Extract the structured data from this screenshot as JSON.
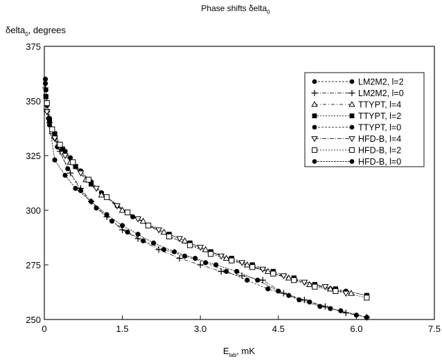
{
  "chart_data": {
    "type": "line",
    "title": "Phase shifts δelta",
    "title_sub": "0",
    "ylabel": "δelta",
    "ylabel_sub": "0",
    "ylabel_suffix": ", degrees",
    "xlabel": "E",
    "xlabel_sub": "lab",
    "xlabel_suffix": ", mK",
    "xlim": [
      0,
      7.5
    ],
    "ylim": [
      250,
      375
    ],
    "xticks": [
      "0",
      "1.5",
      "3.0",
      "4.5",
      "6.0",
      "7.5"
    ],
    "yticks": [
      "250",
      "275",
      "300",
      "325",
      "350",
      "375"
    ],
    "grid": false,
    "legend_position": "top-right",
    "series": [
      {
        "name": "LM2M2, l=2",
        "marker": "filled-circle",
        "x": [
          0.02,
          0.05,
          0.1,
          0.15,
          0.2,
          0.3,
          0.4,
          0.5,
          0.7,
          0.9,
          1.1,
          1.4,
          1.7,
          2.0,
          2.4,
          2.8,
          3.2,
          3.6,
          4.0,
          4.4,
          4.8,
          5.2,
          5.5,
          5.8,
          6.2
        ],
        "y": [
          358,
          348,
          342,
          337,
          333,
          330,
          327,
          324,
          318,
          313,
          308,
          302,
          297,
          293,
          288,
          284,
          281,
          277,
          274,
          271,
          268,
          266,
          264,
          263,
          261
        ]
      },
      {
        "name": "LM2M2, l=0",
        "marker": "plus",
        "x": [
          0.02,
          0.05,
          0.1,
          0.2,
          0.3,
          0.5,
          0.7,
          0.9,
          1.2,
          1.5,
          1.8,
          2.2,
          2.6,
          3.0,
          3.4,
          3.8,
          4.2,
          4.6,
          5.0,
          5.4,
          5.8,
          6.2
        ],
        "y": [
          356,
          346,
          340,
          333,
          327,
          317,
          310,
          304,
          297,
          291,
          287,
          282,
          278,
          275,
          272,
          270,
          268,
          262,
          259,
          256,
          253,
          251
        ]
      },
      {
        "name": "TTYPT, l=4",
        "marker": "open-triangle-up",
        "x": [
          0.05,
          0.15,
          0.3,
          0.5,
          0.8,
          1.1,
          1.5,
          1.9,
          2.3,
          2.7,
          3.1,
          3.5,
          3.9,
          4.3,
          4.7,
          5.1,
          5.5,
          5.9
        ],
        "y": [
          346,
          336,
          329,
          322,
          314,
          307,
          300,
          295,
          290,
          286,
          282,
          278,
          275,
          272,
          269,
          266,
          264,
          262
        ]
      },
      {
        "name": "TTYPT, l=2",
        "marker": "filled-square",
        "x": [
          0.03,
          0.1,
          0.2,
          0.35,
          0.6,
          0.9,
          1.2,
          1.6,
          2.0,
          2.4,
          2.8,
          3.2,
          3.6,
          4.0,
          4.4,
          4.8,
          5.2,
          5.6,
          6.2
        ],
        "y": [
          352,
          341,
          335,
          328,
          320,
          312,
          306,
          299,
          293,
          289,
          285,
          281,
          278,
          275,
          272,
          269,
          266,
          264,
          261
        ]
      },
      {
        "name": "TTYPT, l=0",
        "marker": "filled-circle",
        "x": [
          0.03,
          0.1,
          0.25,
          0.45,
          0.7,
          1.0,
          1.3,
          1.6,
          1.9,
          2.3,
          2.7,
          3.1,
          3.5,
          3.9,
          4.3,
          4.7,
          5.1,
          5.5,
          6.0
        ],
        "y": [
          355,
          339,
          329,
          319,
          309,
          301,
          295,
          290,
          286,
          282,
          279,
          276,
          272,
          268,
          264,
          261,
          258,
          255,
          252
        ]
      },
      {
        "name": "HFD-B, l=4",
        "marker": "open-triangle-down",
        "x": [
          0.05,
          0.2,
          0.4,
          0.7,
          1.0,
          1.4,
          1.8,
          2.2,
          2.6,
          3.0,
          3.4,
          3.8,
          4.2,
          4.6,
          5.0,
          5.4,
          5.8
        ],
        "y": [
          345,
          333,
          325,
          317,
          310,
          302,
          296,
          291,
          287,
          283,
          279,
          276,
          273,
          270,
          267,
          265,
          262
        ]
      },
      {
        "name": "HFD-B, l=2",
        "marker": "open-square",
        "x": [
          0.05,
          0.15,
          0.3,
          0.55,
          0.85,
          1.2,
          1.6,
          2.0,
          2.4,
          2.8,
          3.2,
          3.6,
          4.0,
          4.4,
          4.8,
          5.2,
          5.6,
          6.2
        ],
        "y": [
          349,
          337,
          330,
          322,
          314,
          306,
          299,
          293,
          288,
          284,
          280,
          277,
          274,
          271,
          268,
          265,
          263,
          260
        ]
      },
      {
        "name": "HFD-B, l=0",
        "marker": "filled-circle",
        "x": [
          0.02,
          0.08,
          0.2,
          0.4,
          0.6,
          0.9,
          1.2,
          1.5,
          1.8,
          2.1,
          2.5,
          2.9,
          3.3,
          3.7,
          4.1,
          4.5,
          4.9,
          5.3,
          5.7,
          6.2
        ],
        "y": [
          360,
          342,
          323,
          316,
          310,
          304,
          298,
          293,
          289,
          285,
          281,
          278,
          275,
          272,
          268,
          263,
          259,
          256,
          254,
          251
        ]
      }
    ]
  }
}
